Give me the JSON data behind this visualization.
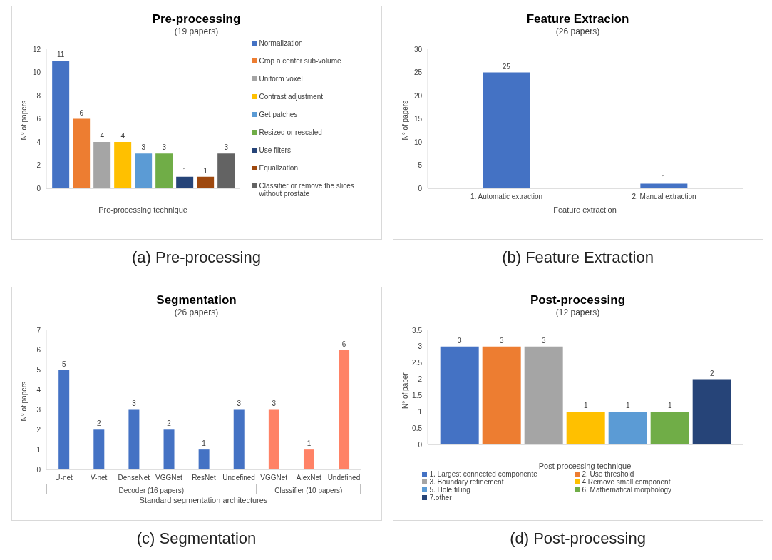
{
  "chart_data": [
    {
      "type": "bar",
      "title": "Pre-processing",
      "subtitle": "(19 papers)",
      "xlabel": "Pre-processing technique",
      "ylabel": "N° of papers",
      "categories": [
        null
      ],
      "series": [
        {
          "name": "Normalization",
          "color": "#4472c4",
          "values": [
            11
          ]
        },
        {
          "name": "Crop a center sub-volume",
          "color": "#ed7d31",
          "values": [
            6
          ]
        },
        {
          "name": "Uniform voxel",
          "color": "#a5a5a5",
          "values": [
            4
          ]
        },
        {
          "name": "Contrast adjustment",
          "color": "#ffc000",
          "values": [
            4
          ]
        },
        {
          "name": "Get patches",
          "color": "#5b9bd5",
          "values": [
            3
          ]
        },
        {
          "name": "Resized or rescaled",
          "color": "#70ad47",
          "values": [
            3
          ]
        },
        {
          "name": "Use filters",
          "color": "#264478",
          "values": [
            1
          ]
        },
        {
          "name": "Equalization",
          "color": "#9e480e",
          "values": [
            1
          ]
        },
        {
          "name": "Classifier or remove the slices without prostate",
          "color": "#636363",
          "values": [
            3
          ]
        }
      ],
      "ylim": [
        0,
        12
      ],
      "yticks": [
        0,
        2,
        4,
        6,
        8,
        10,
        12
      ],
      "data_labels": true,
      "legend": "right",
      "annotations": [
        "(a)  Pre-processing"
      ]
    },
    {
      "type": "bar",
      "title": "Feature Extracion",
      "subtitle": "(26 papers)",
      "xlabel": "Feature extraction",
      "ylabel": "N° of papers",
      "categories": [
        "1. Automatic extraction",
        "2. Manual extraction"
      ],
      "values": [
        25,
        1
      ],
      "color": "#4472c4",
      "ylim": [
        0,
        30
      ],
      "yticks": [
        0,
        5,
        10,
        15,
        20,
        25,
        30
      ],
      "data_labels": true,
      "annotations": [
        "(b)  Feature Extraction"
      ]
    },
    {
      "type": "bar",
      "title": "Segmentation",
      "subtitle": "(26 papers)",
      "xlabel": "Standard segmentation architectures",
      "ylabel": "N° of papers",
      "categories": [
        "U-net",
        "V-net",
        "DenseNet",
        "VGGNet",
        "ResNet",
        "Undefined",
        "VGGNet",
        "AlexNet",
        "Undefined"
      ],
      "values": [
        5,
        2,
        3,
        2,
        1,
        3,
        3,
        1,
        6
      ],
      "colors": [
        "#4472c4",
        "#4472c4",
        "#4472c4",
        "#4472c4",
        "#4472c4",
        "#4472c4",
        "#ff8266",
        "#ff8266",
        "#ff8266"
      ],
      "ylim": [
        0,
        7
      ],
      "yticks": [
        0,
        1,
        2,
        3,
        4,
        5,
        6,
        7
      ],
      "data_labels": true,
      "annotations": [
        "Decoder (16 papers)",
        "Classifier (10 papers)",
        "(c)  Segmentation"
      ]
    },
    {
      "type": "bar",
      "title": "Post-processing",
      "subtitle": "(12 papers)",
      "xlabel": "Post-processing technique",
      "ylabel": "N° of paper",
      "categories": [
        null
      ],
      "series": [
        {
          "name": "1. Largest connected componente",
          "color": "#4472c4",
          "values": [
            3
          ]
        },
        {
          "name": "2. Use threshold",
          "color": "#ed7d31",
          "values": [
            3
          ]
        },
        {
          "name": "3. Boundary refinement",
          "color": "#a5a5a5",
          "values": [
            3
          ]
        },
        {
          "name": "4.Remove small component",
          "color": "#ffc000",
          "values": [
            1
          ]
        },
        {
          "name": "5. Hole filling",
          "color": "#5b9bd5",
          "values": [
            1
          ]
        },
        {
          "name": "6. Mathematical morphology",
          "color": "#70ad47",
          "values": [
            1
          ]
        },
        {
          "name": "7.other",
          "color": "#264478",
          "values": [
            2
          ]
        }
      ],
      "ylim": [
        0,
        3.5
      ],
      "yticks": [
        0,
        0.5,
        1,
        1.5,
        2,
        2.5,
        3,
        3.5
      ],
      "data_labels": true,
      "legend": "bottom",
      "annotations": [
        "(d)  Post-processing"
      ]
    }
  ]
}
